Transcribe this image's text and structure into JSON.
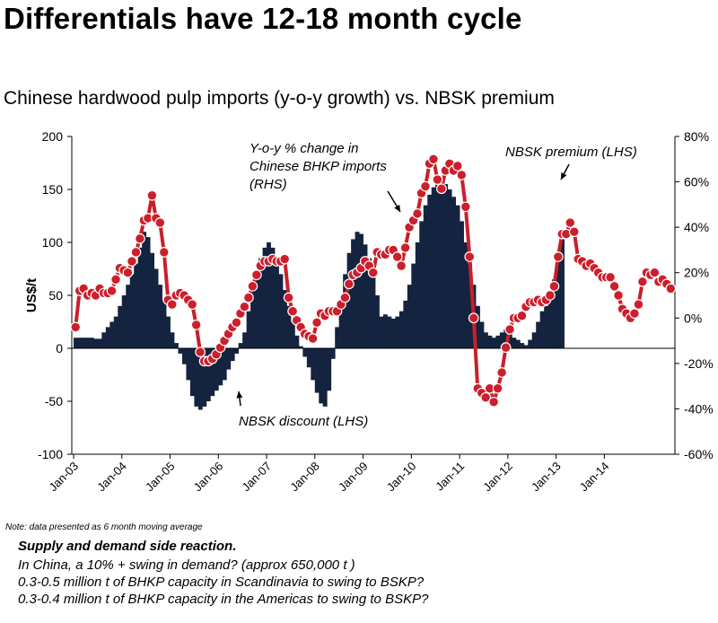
{
  "title": "Differentials have 12-18 month cycle",
  "subtitle": "Chinese hardwood pulp imports (y-o-y growth) vs. NBSK premium",
  "note": "Note: data presented as 6 month moving average",
  "bottom_heading": "Supply and demand side reaction.",
  "bottom_lines": [
    "In China, a 10% + swing in demand? (approx 650,000 t )",
    "0.3-0.5 million t of BHKP capacity in Scandinavia to swing to BSKP?",
    "0.3-0.4 million t of BHKP capacity in the Americas to swing to BSKP?"
  ],
  "chart_data": {
    "type": "bar",
    "title": "Chinese hardwood pulp imports (y-o-y growth) vs. NBSK premium",
    "ylabel": "US$/t",
    "ylim": [
      -100,
      200
    ],
    "y2lim": [
      -60,
      80
    ],
    "yticks": [
      "-100",
      "-50",
      "0",
      "50",
      "100",
      "150",
      "200"
    ],
    "y2ticks": [
      "-60%",
      "-40%",
      "-20%",
      "0%",
      "20%",
      "40%",
      "60%",
      "80%"
    ],
    "xticks": [
      "Jan-03",
      "Jan-04",
      "Jan-05",
      "Jan-06",
      "Jan-07",
      "Jan-08",
      "Jan-09",
      "Jan-10",
      "Jan-11",
      "Jan-12",
      "Jan-13",
      "Jan-14"
    ],
    "grid": false,
    "colors": {
      "bars": "#14233f",
      "line": "#c8202a",
      "markers": "#cc1f2b"
    },
    "annotations": [
      {
        "text": "Y-o-y % change in Chinese BHKP imports (RHS)",
        "lines": [
          "Y-o-y % change in",
          "Chinese BHKP imports",
          "(RHS)"
        ]
      },
      {
        "text": "NBSK premium (LHS)",
        "lines": [
          "NBSK premium (LHS)"
        ]
      },
      {
        "text": "NBSK discount (LHS)",
        "lines": [
          "NBSK discount (LHS)"
        ]
      }
    ],
    "series": [
      {
        "name": "NBSK premium (LHS)",
        "type": "bar",
        "axis": "left",
        "x_start": "Jan-03",
        "values": [
          10,
          10,
          10,
          10,
          10,
          9,
          9,
          15,
          20,
          25,
          30,
          40,
          50,
          60,
          70,
          80,
          95,
          110,
          105,
          90,
          75,
          60,
          45,
          30,
          15,
          5,
          -5,
          -15,
          -30,
          -45,
          -55,
          -58,
          -55,
          -50,
          -45,
          -40,
          -35,
          -30,
          -20,
          -12,
          -5,
          5,
          15,
          35,
          55,
          72,
          85,
          95,
          100,
          95,
          85,
          70,
          55,
          40,
          25,
          12,
          2,
          -8,
          -18,
          -30,
          -42,
          -52,
          -55,
          -40,
          -10,
          20,
          45,
          70,
          90,
          103,
          110,
          108,
          98,
          85,
          70,
          50,
          30,
          32,
          30,
          28,
          30,
          35,
          45,
          60,
          80,
          100,
          120,
          135,
          145,
          152,
          157,
          158,
          155,
          150,
          143,
          135,
          120,
          100,
          80,
          60,
          40,
          25,
          15,
          12,
          10,
          12,
          15,
          18,
          15,
          10,
          8,
          5,
          3,
          8,
          15,
          25,
          35,
          40,
          50,
          65,
          85,
          103
        ]
      },
      {
        "name": "Y-o-y % change in Chinese BHKP imports (RHS)",
        "type": "line",
        "axis": "right",
        "x_start": "Jan-03",
        "values": [
          -4,
          12,
          13,
          10,
          11,
          10,
          13,
          11,
          11,
          12,
          17,
          22,
          21,
          20,
          25,
          29,
          35,
          43,
          44,
          54,
          44,
          42,
          29,
          8,
          6,
          10,
          11,
          10,
          8,
          6,
          -3,
          -15,
          -19,
          -19,
          -18,
          -16,
          -13,
          -10,
          -7,
          -4,
          -2,
          2,
          5,
          9,
          14,
          19,
          23,
          25,
          25,
          26,
          25,
          25,
          26,
          9,
          3,
          -1,
          -4,
          -7,
          -8,
          -9,
          -2,
          2,
          1,
          3,
          3,
          3,
          6,
          9,
          15,
          19,
          20,
          22,
          25,
          23,
          20,
          29,
          28,
          28,
          30,
          30,
          27,
          23,
          31,
          40,
          43,
          46,
          55,
          58,
          68,
          70,
          61,
          57,
          65,
          68,
          65,
          67,
          63,
          49,
          27,
          0,
          -31,
          -33,
          -35,
          -31,
          -37,
          -31,
          -24,
          -13,
          -5,
          0,
          0,
          1,
          5,
          7,
          7,
          8,
          7,
          8,
          10,
          14,
          27,
          37,
          37,
          42,
          38,
          26,
          25,
          23,
          24,
          22,
          20,
          18,
          18,
          18,
          14,
          10,
          4,
          2,
          0,
          2,
          6,
          16,
          20,
          19,
          20,
          16,
          17,
          15,
          13
        ]
      }
    ]
  }
}
